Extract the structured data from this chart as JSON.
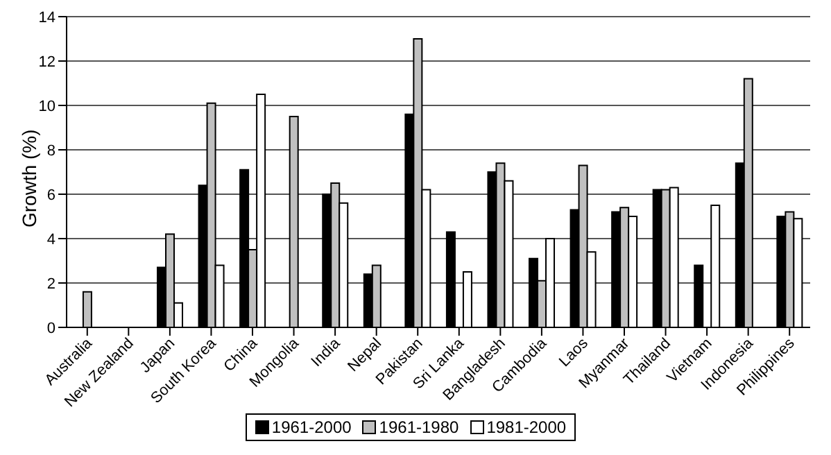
{
  "chart_data": {
    "type": "bar",
    "ylabel": "Growth (%)",
    "categories": [
      "Australia",
      "New Zealand",
      "Japan",
      "South Korea",
      "China",
      "Mongolia",
      "India",
      "Nepal",
      "Pakistan",
      "Sri Lanka",
      "Bangladesh",
      "Cambodia",
      "Laos",
      "Myanmar",
      "Thailand",
      "Vietnam",
      "Indonesia",
      "Philippines"
    ],
    "series": [
      {
        "name": "1961-2000",
        "color": "#000000",
        "values": [
          null,
          null,
          2.7,
          6.4,
          7.1,
          null,
          6.0,
          2.4,
          9.6,
          4.3,
          7.0,
          3.1,
          5.3,
          5.2,
          6.2,
          2.8,
          7.4,
          5.0
        ]
      },
      {
        "name": "1961-1980",
        "color": "#c0c0c0",
        "values": [
          1.6,
          null,
          4.2,
          10.1,
          3.5,
          9.5,
          6.5,
          2.8,
          13.0,
          null,
          7.4,
          2.1,
          7.3,
          5.4,
          6.2,
          null,
          11.2,
          5.2
        ]
      },
      {
        "name": "1981-2000",
        "color": "#ffffff",
        "values": [
          null,
          null,
          1.1,
          2.8,
          10.5,
          null,
          5.6,
          null,
          6.2,
          2.5,
          6.6,
          4.0,
          3.4,
          5.0,
          6.3,
          5.5,
          null,
          4.9
        ]
      }
    ],
    "ylim": [
      0,
      14
    ],
    "yticks": [
      0,
      2,
      4,
      6,
      8,
      10,
      12,
      14
    ],
    "grid": "y",
    "legend": "bottom"
  }
}
